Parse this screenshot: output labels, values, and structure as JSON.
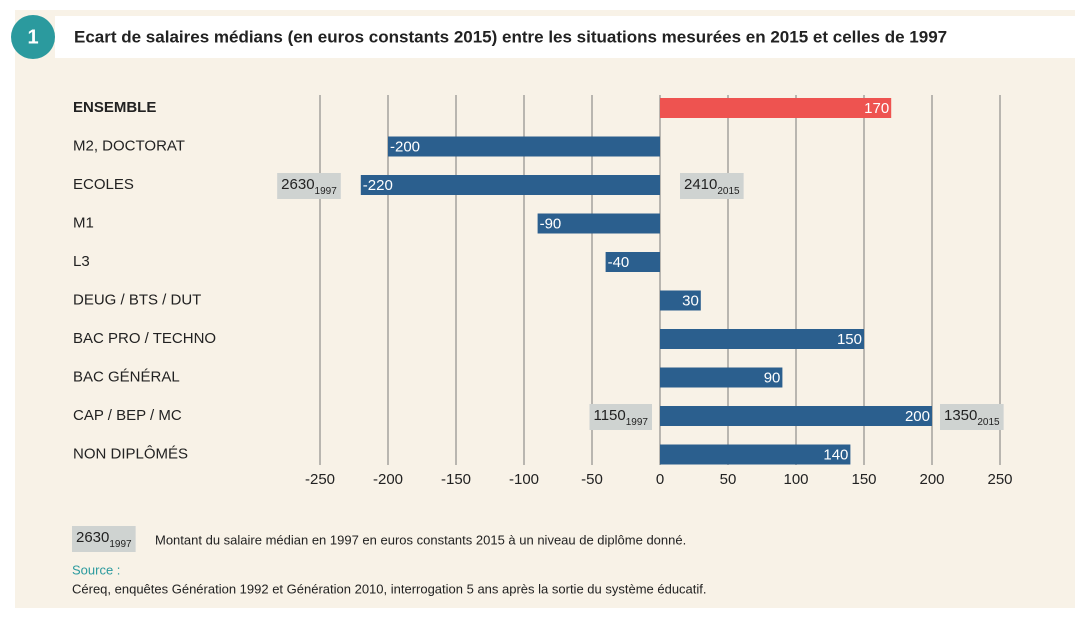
{
  "badge": "1",
  "chart_data": {
    "type": "bar",
    "orientation": "horizontal",
    "title": "Ecart de salaires médians (en euros constants 2015) entre les situations mesurées en 2015 et celles de 1997",
    "categories": [
      "ENSEMBLE",
      "M2, DOCTORAT",
      "ECOLES",
      "M1",
      "L3",
      "DEUG / BTS / DUT",
      "BAC PRO / TECHNO",
      "BAC GÉNÉRAL",
      "CAP / BEP / MC",
      "NON DIPLÔMÉS"
    ],
    "values": [
      170,
      -200,
      -220,
      -90,
      -40,
      30,
      150,
      90,
      200,
      140
    ],
    "colors": [
      "#ee5350",
      "#2b5f8e",
      "#2b5f8e",
      "#2b5f8e",
      "#2b5f8e",
      "#2b5f8e",
      "#2b5f8e",
      "#2b5f8e",
      "#2b5f8e",
      "#2b5f8e"
    ],
    "xlim": [
      -250,
      250
    ],
    "xticks": [
      -250,
      -200,
      -150,
      -100,
      -50,
      0,
      50,
      100,
      150,
      200,
      250
    ],
    "grid": true,
    "annotations": [
      {
        "category": "ECOLES",
        "start": {
          "text": 2630,
          "sub": 1997
        },
        "end": {
          "text": 2410,
          "sub": 2015
        }
      },
      {
        "category": "CAP / BEP / MC",
        "start": {
          "text": 1150,
          "sub": 1997
        },
        "end": {
          "text": 1350,
          "sub": 2015
        }
      }
    ]
  },
  "legend": {
    "sample": {
      "text": 2630,
      "sub": 1997
    },
    "text": "Montant du salaire médian en 1997 en euros constants 2015 à un niveau de diplôme donné."
  },
  "source": {
    "label": "Source :",
    "text": "Céreq, enquêtes Génération 1992 et Génération 2010, interrogation 5 ans après la sortie du système éducatif."
  }
}
